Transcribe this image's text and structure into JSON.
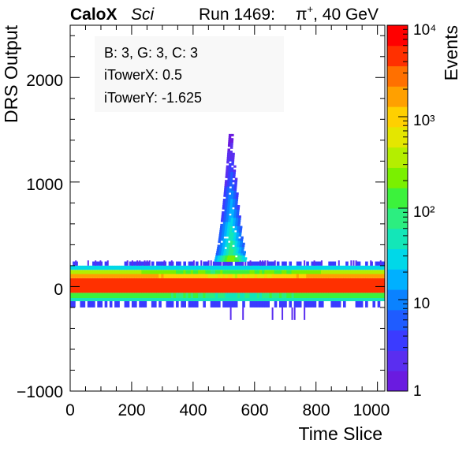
{
  "header": {
    "brand": "CaloX",
    "tag": "Sci",
    "run": "Run 1469:",
    "particle_symbol": "π",
    "particle_charge": "+",
    "energy": ", 40 GeV"
  },
  "info_box": {
    "line1": "B: 3, G: 3, C: 3",
    "line2": "iTowerX: 0.5",
    "line3": "iTowerY: -1.625"
  },
  "chart_data": {
    "type": "heatmap",
    "title": "",
    "xlabel": "Time Slice",
    "ylabel": "DRS Output",
    "zlabel": "Events",
    "xlim": [
      0,
      1024
    ],
    "ylim": [
      -1000,
      2500
    ],
    "x_ticks": [
      "0",
      "200",
      "400",
      "600",
      "800",
      "1000"
    ],
    "y_ticks": [
      "−1000",
      "0",
      "1000",
      "2000"
    ],
    "z_scale": "log",
    "zlim": [
      1,
      10000
    ],
    "z_ticks": [
      "1",
      "10",
      "10²",
      "10³",
      "10⁴"
    ],
    "palette": [
      "#6a1be0",
      "#5a2ef0",
      "#3b3bff",
      "#1f5cff",
      "#0a82ff",
      "#00b0ff",
      "#00d8e8",
      "#13e6b8",
      "#2cee80",
      "#3cf23c",
      "#7af000",
      "#b4ee00",
      "#e4e600",
      "#ffd000",
      "#ffa000",
      "#ff7000",
      "#ff3000",
      "#ff0000"
    ],
    "bands": [
      {
        "y": [
          -200,
          -140
        ],
        "level": 0.12,
        "desc": "outer lower"
      },
      {
        "y": [
          -140,
          -110
        ],
        "level": 0.4
      },
      {
        "y": [
          -110,
          -60
        ],
        "level": 0.55
      },
      {
        "y": [
          -60,
          80
        ],
        "level": 0.97
      },
      {
        "y": [
          80,
          120
        ],
        "level": 0.82
      },
      {
        "y": [
          120,
          160
        ],
        "level": 0.62
      },
      {
        "y": [
          160,
          200
        ],
        "level": 0.35
      },
      {
        "y": [
          200,
          240
        ],
        "level": 0.1
      }
    ],
    "peak": {
      "center_x": 520,
      "max_y": 1450,
      "width": 60
    }
  }
}
